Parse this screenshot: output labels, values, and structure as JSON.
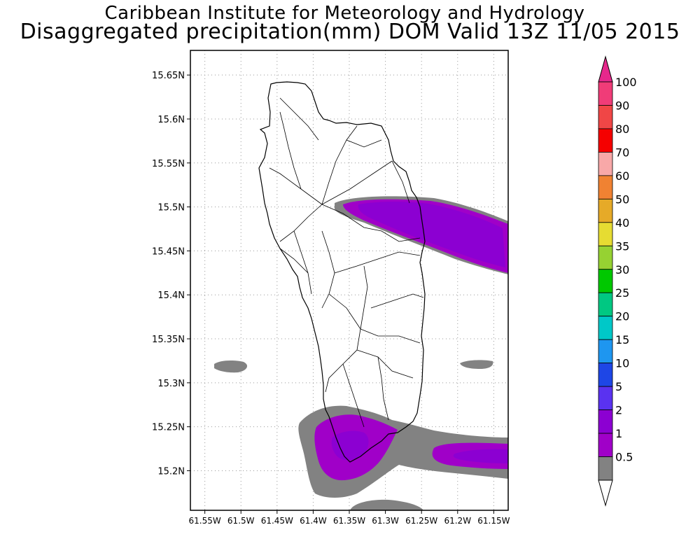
{
  "header": {
    "title": "Caribbean Institute for Meteorology and Hydrology",
    "subtitle": "Disaggregated precipitation(mm) DOM Valid 13Z 11/05 2015"
  },
  "map": {
    "lat_labels": [
      "15.65N",
      "15.6N",
      "15.55N",
      "15.5N",
      "15.45N",
      "15.4N",
      "15.35N",
      "15.3N",
      "15.25N",
      "15.2N"
    ],
    "lon_labels": [
      "61.55W",
      "61.5W",
      "61.45W",
      "61.4W",
      "61.35W",
      "61.3W",
      "61.25W",
      "61.2W",
      "61.15W"
    ],
    "grid": true,
    "extent": {
      "lon": [
        -61.57,
        -61.13
      ],
      "lat": [
        15.155,
        15.678
      ]
    }
  },
  "colorbar": {
    "labels": [
      "100",
      "90",
      "80",
      "70",
      "60",
      "50",
      "40",
      "35",
      "30",
      "25",
      "20",
      "15",
      "10",
      "5",
      "2",
      "1",
      "0.5"
    ],
    "colors": [
      "#f03c78",
      "#f04646",
      "#f50000",
      "#f8a8a8",
      "#f08232",
      "#e6aa28",
      "#e6dc32",
      "#96d232",
      "#00c800",
      "#00c882",
      "#00c8c8",
      "#1e96f0",
      "#1e46e6",
      "#5a32f0",
      "#8c00d2",
      "#a000c8",
      "#828282"
    ],
    "tip_top_color": "#e6288c"
  },
  "precip_colors": {
    "0.5": "#828282",
    "1": "#a000c8",
    "2": "#8c00d2",
    "5": "#5a32f0"
  }
}
